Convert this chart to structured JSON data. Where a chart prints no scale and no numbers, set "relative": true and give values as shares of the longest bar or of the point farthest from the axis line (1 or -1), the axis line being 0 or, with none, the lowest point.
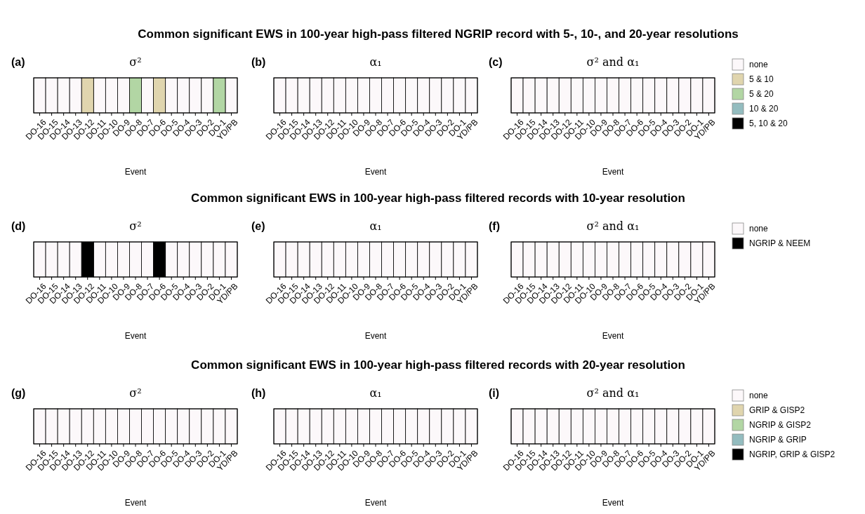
{
  "chart_data": [
    {
      "type": "bar",
      "relative": true,
      "title": "σ²",
      "annotations": [
        "Common significant EWS in 100-year high-pass filtered NGRIP record with 5-, 10-, and 20-year resolutions",
        "(a)"
      ],
      "xlabel": "Event",
      "categories": [
        "DO-16",
        "DO-15",
        "DO-14",
        "DO-13",
        "DO-12",
        "DO-11",
        "DO-10",
        "DO-9",
        "DO-8",
        "DO-7",
        "DO-6",
        "DO-5",
        "DO-4",
        "DO-3",
        "DO-2",
        "DO-1",
        "YD/PB"
      ],
      "legend": false,
      "series": [
        {
          "color": "#fcf8fa",
          "values": [
            1,
            1,
            1,
            1,
            null,
            1,
            1,
            1,
            null,
            1,
            null,
            1,
            1,
            1,
            1,
            null,
            1
          ]
        },
        {
          "color": "#e0d5ae",
          "values": [
            null,
            null,
            null,
            null,
            1,
            null,
            null,
            null,
            null,
            null,
            1,
            null,
            null,
            null,
            null,
            null,
            null
          ]
        },
        {
          "color": "#b2d6a4",
          "values": [
            null,
            null,
            null,
            null,
            null,
            null,
            null,
            null,
            1,
            null,
            null,
            null,
            null,
            null,
            null,
            1,
            null
          ]
        }
      ]
    },
    {
      "type": "bar",
      "relative": true,
      "title": "α₁",
      "annotations": [
        "(b)"
      ],
      "xlabel": "Event",
      "categories": [
        "DO-16",
        "DO-15",
        "DO-14",
        "DO-13",
        "DO-12",
        "DO-11",
        "DO-10",
        "DO-9",
        "DO-8",
        "DO-7",
        "DO-6",
        "DO-5",
        "DO-4",
        "DO-3",
        "DO-2",
        "DO-1",
        "YD/PB"
      ],
      "legend": false,
      "series": [
        {
          "color": "#fcf8fa",
          "values": [
            1,
            1,
            1,
            1,
            1,
            1,
            1,
            1,
            1,
            1,
            1,
            1,
            1,
            1,
            1,
            1,
            1
          ]
        }
      ]
    },
    {
      "type": "bar",
      "relative": true,
      "title": "σ² and α₁",
      "annotations": [
        "(c)"
      ],
      "xlabel": "Event",
      "categories": [
        "DO-16",
        "DO-15",
        "DO-14",
        "DO-13",
        "DO-12",
        "DO-11",
        "DO-10",
        "DO-9",
        "DO-8",
        "DO-7",
        "DO-6",
        "DO-5",
        "DO-4",
        "DO-3",
        "DO-2",
        "DO-1",
        "YD/PB"
      ],
      "legend": "right",
      "series": [
        {
          "name": "none",
          "color": "#fcf8fa",
          "values": [
            1,
            1,
            1,
            1,
            1,
            1,
            1,
            1,
            1,
            1,
            1,
            1,
            1,
            1,
            1,
            1,
            1
          ]
        },
        {
          "name": "5 & 10",
          "color": "#e0d5ae",
          "values": [
            null,
            null,
            null,
            null,
            null,
            null,
            null,
            null,
            null,
            null,
            null,
            null,
            null,
            null,
            null,
            null,
            null
          ]
        },
        {
          "name": "5 & 20",
          "color": "#b2d6a4",
          "values": [
            null,
            null,
            null,
            null,
            null,
            null,
            null,
            null,
            null,
            null,
            null,
            null,
            null,
            null,
            null,
            null,
            null
          ]
        },
        {
          "name": "10 & 20",
          "color": "#93bcbf",
          "values": [
            null,
            null,
            null,
            null,
            null,
            null,
            null,
            null,
            null,
            null,
            null,
            null,
            null,
            null,
            null,
            null,
            null
          ]
        },
        {
          "name": "5, 10 & 20",
          "color": "#000000",
          "values": [
            null,
            null,
            null,
            null,
            null,
            null,
            null,
            null,
            null,
            null,
            null,
            null,
            null,
            null,
            null,
            null,
            null
          ]
        }
      ]
    },
    {
      "type": "bar",
      "relative": true,
      "title": "σ²",
      "annotations": [
        "Common significant EWS in 100-year high-pass filtered records with 10-year resolution",
        "(d)"
      ],
      "xlabel": "Event",
      "categories": [
        "DO-16",
        "DO-15",
        "DO-14",
        "DO-13",
        "DO-12",
        "DO-11",
        "DO-10",
        "DO-9",
        "DO-8",
        "DO-7",
        "DO-6",
        "DO-5",
        "DO-4",
        "DO-3",
        "DO-2",
        "DO-1",
        "YD/PB"
      ],
      "legend": false,
      "series": [
        {
          "color": "#fcf8fa",
          "values": [
            1,
            1,
            1,
            1,
            null,
            1,
            1,
            1,
            1,
            1,
            null,
            1,
            1,
            1,
            1,
            1,
            1
          ]
        },
        {
          "color": "#000000",
          "values": [
            null,
            null,
            null,
            null,
            1,
            null,
            null,
            null,
            null,
            null,
            1,
            null,
            null,
            null,
            null,
            null,
            null
          ]
        }
      ]
    },
    {
      "type": "bar",
      "relative": true,
      "title": "α₁",
      "annotations": [
        "(e)"
      ],
      "xlabel": "Event",
      "categories": [
        "DO-16",
        "DO-15",
        "DO-14",
        "DO-13",
        "DO-12",
        "DO-11",
        "DO-10",
        "DO-9",
        "DO-8",
        "DO-7",
        "DO-6",
        "DO-5",
        "DO-4",
        "DO-3",
        "DO-2",
        "DO-1",
        "YD/PB"
      ],
      "legend": false,
      "series": [
        {
          "color": "#fcf8fa",
          "values": [
            1,
            1,
            1,
            1,
            1,
            1,
            1,
            1,
            1,
            1,
            1,
            1,
            1,
            1,
            1,
            1,
            1
          ]
        }
      ]
    },
    {
      "type": "bar",
      "relative": true,
      "title": "σ² and α₁",
      "annotations": [
        "(f)"
      ],
      "xlabel": "Event",
      "categories": [
        "DO-16",
        "DO-15",
        "DO-14",
        "DO-13",
        "DO-12",
        "DO-11",
        "DO-10",
        "DO-9",
        "DO-8",
        "DO-7",
        "DO-6",
        "DO-5",
        "DO-4",
        "DO-3",
        "DO-2",
        "DO-1",
        "YD/PB"
      ],
      "legend": "right",
      "series": [
        {
          "name": "none",
          "color": "#fcf8fa",
          "values": [
            1,
            1,
            1,
            1,
            1,
            1,
            1,
            1,
            1,
            1,
            1,
            1,
            1,
            1,
            1,
            1,
            1
          ]
        },
        {
          "name": "NGRIP & NEEM",
          "color": "#000000",
          "values": [
            null,
            null,
            null,
            null,
            null,
            null,
            null,
            null,
            null,
            null,
            null,
            null,
            null,
            null,
            null,
            null,
            null
          ]
        }
      ]
    },
    {
      "type": "bar",
      "relative": true,
      "title": "σ²",
      "annotations": [
        "Common significant EWS in 100-year high-pass filtered records with 20-year resolution",
        "(g)"
      ],
      "xlabel": "Event",
      "categories": [
        "DO-16",
        "DO-15",
        "DO-14",
        "DO-13",
        "DO-12",
        "DO-11",
        "DO-10",
        "DO-9",
        "DO-8",
        "DO-7",
        "DO-6",
        "DO-5",
        "DO-4",
        "DO-3",
        "DO-2",
        "DO-1",
        "YD/PB"
      ],
      "legend": false,
      "series": [
        {
          "color": "#fcf8fa",
          "values": [
            1,
            1,
            1,
            1,
            1,
            1,
            1,
            1,
            1,
            1,
            1,
            1,
            1,
            1,
            1,
            1,
            1
          ]
        }
      ]
    },
    {
      "type": "bar",
      "relative": true,
      "title": "α₁",
      "annotations": [
        "(h)"
      ],
      "xlabel": "Event",
      "categories": [
        "DO-16",
        "DO-15",
        "DO-14",
        "DO-13",
        "DO-12",
        "DO-11",
        "DO-10",
        "DO-9",
        "DO-8",
        "DO-7",
        "DO-6",
        "DO-5",
        "DO-4",
        "DO-3",
        "DO-2",
        "DO-1",
        "YD/PB"
      ],
      "legend": false,
      "series": [
        {
          "color": "#fcf8fa",
          "values": [
            1,
            1,
            1,
            1,
            1,
            1,
            1,
            1,
            1,
            1,
            1,
            1,
            1,
            1,
            1,
            1,
            1
          ]
        }
      ]
    },
    {
      "type": "bar",
      "relative": true,
      "title": "σ² and α₁",
      "annotations": [
        "(i)"
      ],
      "xlabel": "Event",
      "categories": [
        "DO-16",
        "DO-15",
        "DO-14",
        "DO-13",
        "DO-12",
        "DO-11",
        "DO-10",
        "DO-9",
        "DO-8",
        "DO-7",
        "DO-6",
        "DO-5",
        "DO-4",
        "DO-3",
        "DO-2",
        "DO-1",
        "YD/PB"
      ],
      "legend": "right",
      "series": [
        {
          "name": "none",
          "color": "#fcf8fa",
          "values": [
            1,
            1,
            1,
            1,
            1,
            1,
            1,
            1,
            1,
            1,
            1,
            1,
            1,
            1,
            1,
            1,
            1
          ]
        },
        {
          "name": "GRIP & GISP2",
          "color": "#e0d5ae",
          "values": [
            null,
            null,
            null,
            null,
            null,
            null,
            null,
            null,
            null,
            null,
            null,
            null,
            null,
            null,
            null,
            null,
            null
          ]
        },
        {
          "name": "NGRIP & GISP2",
          "color": "#b2d6a4",
          "values": [
            null,
            null,
            null,
            null,
            null,
            null,
            null,
            null,
            null,
            null,
            null,
            null,
            null,
            null,
            null,
            null,
            null
          ]
        },
        {
          "name": "NGRIP & GRIP",
          "color": "#93bcbf",
          "values": [
            null,
            null,
            null,
            null,
            null,
            null,
            null,
            null,
            null,
            null,
            null,
            null,
            null,
            null,
            null,
            null,
            null
          ]
        },
        {
          "name": "NGRIP, GRIP & GISP2",
          "color": "#000000",
          "values": [
            null,
            null,
            null,
            null,
            null,
            null,
            null,
            null,
            null,
            null,
            null,
            null,
            null,
            null,
            null,
            null,
            null
          ]
        }
      ]
    }
  ]
}
